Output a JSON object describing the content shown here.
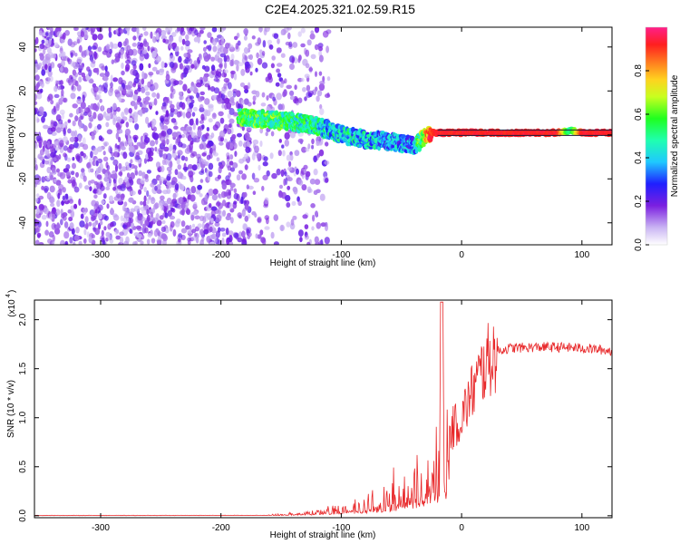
{
  "title": "C2E4.2025.321.02.59.R15",
  "chart_data": [
    {
      "type": "heatmap",
      "title": "C2E4.2025.321.02.59.R15",
      "xlabel": "Height of straight line (km)",
      "ylabel": "Frequency (Hz)",
      "xlim": [
        -355,
        125
      ],
      "ylim": [
        -50,
        49
      ],
      "xticks": [
        -300,
        -200,
        -100,
        0,
        100
      ],
      "yticks": [
        -40,
        -20,
        0,
        20,
        40
      ],
      "colorbar": {
        "label": "Normalized spectral amplitude",
        "range": [
          0.0,
          1.0
        ],
        "ticks": [
          "0.0",
          "0.2",
          "0.4",
          "0.6",
          "0.8"
        ],
        "tick_values": [
          0.0,
          0.2,
          0.4,
          0.6,
          0.8
        ]
      },
      "trace": {
        "x": [
          -185,
          -160,
          -140,
          -120,
          -100,
          -80,
          -60,
          -40,
          -25,
          -20,
          0,
          40,
          80,
          90,
          100,
          125
        ],
        "freq": [
          8,
          7,
          6,
          4,
          0,
          -2,
          -3,
          -5,
          1,
          1,
          1,
          1,
          1,
          2,
          1,
          1
        ],
        "amplitude": [
          0.55,
          0.55,
          0.5,
          0.45,
          0.4,
          0.4,
          0.35,
          0.35,
          0.9,
          0.95,
          0.95,
          0.95,
          0.95,
          0.5,
          0.95,
          0.95
        ]
      },
      "noise_region": {
        "x_start": -355,
        "x_end": -140
      }
    },
    {
      "type": "line",
      "xlabel": "Height of straight line (km)",
      "ylabel": "SNR (10 * v/v)",
      "scale_label": "(x10",
      "scale_exp": "4",
      "xlim": [
        -355,
        125
      ],
      "ylim": [
        -0.02,
        2.2
      ],
      "xticks": [
        -300,
        -200,
        -100,
        0,
        100
      ],
      "yticks": [
        0.0,
        0.5,
        1.0,
        1.5,
        2.0
      ],
      "ytick_labels": [
        "0.0",
        "0.5",
        "1.0",
        "1.5",
        "2.0"
      ],
      "series": [
        {
          "name": "SNR",
          "color": "#e8282a",
          "x": [
            -355,
            -250,
            -150,
            -120,
            -100,
            -80,
            -60,
            -50,
            -40,
            -30,
            -20,
            -15,
            -10,
            0,
            10,
            20,
            30,
            40,
            60,
            80,
            100,
            110,
            125
          ],
          "y": [
            0.005,
            0.006,
            0.01,
            0.04,
            0.08,
            0.12,
            0.2,
            0.28,
            0.35,
            0.5,
            0.6,
            0.7,
            0.85,
            1.0,
            1.3,
            1.55,
            1.68,
            1.71,
            1.72,
            1.72,
            1.71,
            1.7,
            1.68
          ]
        }
      ]
    }
  ]
}
